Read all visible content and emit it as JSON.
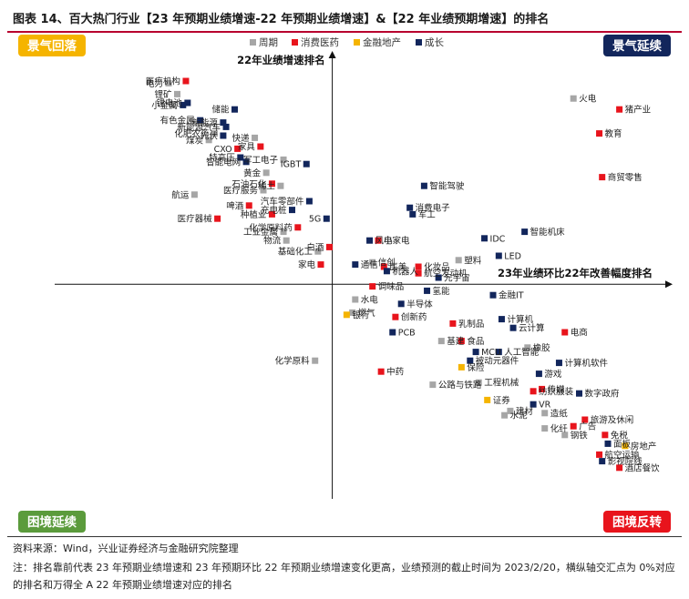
{
  "header": {
    "title": "图表 14、百大热门行业【23 年预期业绩增速-22 年预期业绩增速】&【22 年业绩预期增速】的排名"
  },
  "footer": {
    "source": "资料来源：Wind，兴业证券经济与金融研究院整理",
    "note": "注：排名靠前代表 23 年预期业绩增速和 23 年预期环比 22 年预期业绩增速变化更高，业绩预测的截止时间为 2023/2/20，横纵轴交汇点为 0%对应的排名和万得全 A 22 年预期业绩增速对应的排名"
  },
  "colors": {
    "周期": "#a6a6a6",
    "消费医药": "#e8141c",
    "金融地产": "#f5b400",
    "成长": "#12265c",
    "q_tl": "#f5b400",
    "q_tr": "#12265c",
    "q_bl": "#5b9b3c",
    "q_br": "#e8141c"
  },
  "chart_data": {
    "type": "scatter",
    "xlabel": "23年业绩环比22年改善幅度排名",
    "ylabel": "22年业绩增速排名",
    "xlim": [
      0,
      100
    ],
    "ylim": [
      0,
      100
    ],
    "origin": [
      42,
      48.5
    ],
    "note_axes": "both axes are ranks; higher value = better rank; axes cross at origin",
    "quadrants": {
      "top_left": "景气回落",
      "top_right": "景气延续",
      "bottom_left": "困境延续",
      "bottom_right": "困境反转"
    },
    "legend": [
      {
        "name": "周期",
        "color": "#a6a6a6"
      },
      {
        "name": "消费医药",
        "color": "#e8141c"
      },
      {
        "name": "金融地产",
        "color": "#f5b400"
      },
      {
        "name": "成长",
        "color": "#12265c"
      }
    ],
    "points": [
      {
        "label": "电力",
        "cat": "周期",
        "x": 13.5,
        "y": 94.5
      },
      {
        "label": "医疗机构",
        "cat": "消费医药",
        "x": 16.5,
        "y": 95
      },
      {
        "label": "锂矿",
        "cat": "周期",
        "x": 15,
        "y": 92
      },
      {
        "label": "锂电池",
        "cat": "成长",
        "x": 16.8,
        "y": 90
      },
      {
        "label": "小金属",
        "cat": "成长",
        "x": 16,
        "y": 89.5
      },
      {
        "label": "储能",
        "cat": "成长",
        "x": 25,
        "y": 88.5
      },
      {
        "label": "新能源",
        "cat": "成长",
        "x": 23,
        "y": 85.5
      },
      {
        "label": "新能源汽车",
        "cat": "成长",
        "x": 23.5,
        "y": 84.5
      },
      {
        "label": "有色金属",
        "cat": "成长",
        "x": 19,
        "y": 86
      },
      {
        "label": "化肥农药",
        "cat": "周期",
        "x": 21.5,
        "y": 83
      },
      {
        "label": "光伏",
        "cat": "成长",
        "x": 23,
        "y": 82.5
      },
      {
        "label": "快递",
        "cat": "周期",
        "x": 28.5,
        "y": 82
      },
      {
        "label": "煤炭",
        "cat": "周期",
        "x": 20.5,
        "y": 81.5
      },
      {
        "label": "CXO",
        "cat": "消费医药",
        "x": 25.5,
        "y": 79.5
      },
      {
        "label": "家具",
        "cat": "消费医药",
        "x": 29.5,
        "y": 80
      },
      {
        "label": "特高压",
        "cat": "成长",
        "x": 26,
        "y": 77.5
      },
      {
        "label": "军工电子",
        "cat": "周期",
        "x": 33.5,
        "y": 77
      },
      {
        "label": "IGBT",
        "cat": "成长",
        "x": 37.5,
        "y": 76
      },
      {
        "label": "智能电网",
        "cat": "成长",
        "x": 27,
        "y": 76.5
      },
      {
        "label": "黄金",
        "cat": "周期",
        "x": 30.5,
        "y": 74
      },
      {
        "label": "石油石化",
        "cat": "消费医药",
        "x": 31.5,
        "y": 71.5
      },
      {
        "label": "稀土",
        "cat": "周期",
        "x": 33,
        "y": 71
      },
      {
        "label": "医疗服务",
        "cat": "周期",
        "x": 30,
        "y": 70
      },
      {
        "label": "汽车零部件",
        "cat": "成长",
        "x": 38,
        "y": 67.5
      },
      {
        "label": "航运",
        "cat": "周期",
        "x": 18,
        "y": 69
      },
      {
        "label": "啤酒",
        "cat": "消费医药",
        "x": 27.5,
        "y": 66.5
      },
      {
        "label": "充电桩",
        "cat": "成长",
        "x": 35,
        "y": 65.5
      },
      {
        "label": "医疗器械",
        "cat": "消费医药",
        "x": 22,
        "y": 63.5
      },
      {
        "label": "种植业",
        "cat": "消费医药",
        "x": 31.5,
        "y": 64.5
      },
      {
        "label": "5G",
        "cat": "成长",
        "x": 41,
        "y": 63.5
      },
      {
        "label": "工业金属",
        "cat": "周期",
        "x": 33.5,
        "y": 60.5
      },
      {
        "label": "化学原料药",
        "cat": "消费医药",
        "x": 36,
        "y": 61.5
      },
      {
        "label": "物流",
        "cat": "周期",
        "x": 34,
        "y": 58.5
      },
      {
        "label": "白酒",
        "cat": "消费医药",
        "x": 41.5,
        "y": 57
      },
      {
        "label": "基础化工",
        "cat": "周期",
        "x": 39.5,
        "y": 56
      },
      {
        "label": "家电",
        "cat": "消费医药",
        "x": 40,
        "y": 53
      },
      {
        "label": "风电",
        "cat": "成长",
        "x": 48.5,
        "y": 58.5
      },
      {
        "label": "小家电",
        "cat": "消费医药",
        "x": 50,
        "y": 58.5
      },
      {
        "label": "信创",
        "cat": "周期",
        "x": 49,
        "y": 53.5
      },
      {
        "label": "通信",
        "cat": "成长",
        "x": 46,
        "y": 53
      },
      {
        "label": "医美",
        "cat": "消费医药",
        "x": 51,
        "y": 52.5
      },
      {
        "label": "化妆品",
        "cat": "消费医药",
        "x": 57,
        "y": 52.5
      },
      {
        "label": "机器人",
        "cat": "成长",
        "x": 51.5,
        "y": 51.5
      },
      {
        "label": "航空发动机",
        "cat": "消费医药",
        "x": 57,
        "y": 51
      },
      {
        "label": "塑料",
        "cat": "周期",
        "x": 64,
        "y": 54
      },
      {
        "label": "元宇宙",
        "cat": "成长",
        "x": 60.5,
        "y": 50
      },
      {
        "label": "智能驾驶",
        "cat": "成长",
        "x": 58,
        "y": 71
      },
      {
        "label": "消费电子",
        "cat": "成长",
        "x": 55.5,
        "y": 66
      },
      {
        "label": "军工",
        "cat": "成长",
        "x": 56,
        "y": 64.5
      },
      {
        "label": "IDC",
        "cat": "成长",
        "x": 68.5,
        "y": 59
      },
      {
        "label": "智能机床",
        "cat": "成长",
        "x": 75.5,
        "y": 60.5
      },
      {
        "label": "LED",
        "cat": "成长",
        "x": 71,
        "y": 55
      },
      {
        "label": "火电",
        "cat": "周期",
        "x": 84,
        "y": 91
      },
      {
        "label": "猪产业",
        "cat": "消费医药",
        "x": 92,
        "y": 88.5
      },
      {
        "label": "教育",
        "cat": "消费医药",
        "x": 88.5,
        "y": 83
      },
      {
        "label": "商贸零售",
        "cat": "消费医药",
        "x": 89,
        "y": 73
      },
      {
        "label": "调味品",
        "cat": "消费医药",
        "x": 49,
        "y": 48
      },
      {
        "label": "氢能",
        "cat": "成长",
        "x": 58.5,
        "y": 47
      },
      {
        "label": "金融IT",
        "cat": "成长",
        "x": 70,
        "y": 46
      },
      {
        "label": "水电",
        "cat": "周期",
        "x": 46,
        "y": 45
      },
      {
        "label": "半导体",
        "cat": "成长",
        "x": 54,
        "y": 44
      },
      {
        "label": "燃气",
        "cat": "周期",
        "x": 45.5,
        "y": 42
      },
      {
        "label": "银行",
        "cat": "金融地产",
        "x": 44.5,
        "y": 41.5
      },
      {
        "label": "创新药",
        "cat": "消费医药",
        "x": 53,
        "y": 41
      },
      {
        "label": "乳制品",
        "cat": "消费医药",
        "x": 63,
        "y": 39.5
      },
      {
        "label": "PCB",
        "cat": "成长",
        "x": 52.5,
        "y": 37.5
      },
      {
        "label": "计算机",
        "cat": "成长",
        "x": 71.5,
        "y": 40.5
      },
      {
        "label": "云计算",
        "cat": "成长",
        "x": 73.5,
        "y": 38.5
      },
      {
        "label": "电商",
        "cat": "消费医药",
        "x": 82.5,
        "y": 37.5
      },
      {
        "label": "基建",
        "cat": "周期",
        "x": 61,
        "y": 35.5
      },
      {
        "label": "食品",
        "cat": "消费医药",
        "x": 64.5,
        "y": 35.5
      },
      {
        "label": "MCU",
        "cat": "成长",
        "x": 67,
        "y": 33
      },
      {
        "label": "被动元器件",
        "cat": "成长",
        "x": 66,
        "y": 31
      },
      {
        "label": "人工智能",
        "cat": "成长",
        "x": 71,
        "y": 33
      },
      {
        "label": "橡胶",
        "cat": "周期",
        "x": 76,
        "y": 34
      },
      {
        "label": "化学原料",
        "cat": "周期",
        "x": 39,
        "y": 31
      },
      {
        "label": "保险",
        "cat": "金融地产",
        "x": 64.5,
        "y": 29.5
      },
      {
        "label": "计算机软件",
        "cat": "成长",
        "x": 81.5,
        "y": 30.5
      },
      {
        "label": "中药",
        "cat": "消费医药",
        "x": 50.5,
        "y": 28.5
      },
      {
        "label": "游戏",
        "cat": "成长",
        "x": 78,
        "y": 28
      },
      {
        "label": "公路与铁路",
        "cat": "周期",
        "x": 59.5,
        "y": 25.5
      },
      {
        "label": "工程机械",
        "cat": "周期",
        "x": 67.5,
        "y": 26
      },
      {
        "label": "纺织服装",
        "cat": "消费医药",
        "x": 77,
        "y": 24
      },
      {
        "label": "传媒",
        "cat": "消费医药",
        "x": 78.5,
        "y": 24.5
      },
      {
        "label": "数字政府",
        "cat": "成长",
        "x": 85,
        "y": 23.5
      },
      {
        "label": "证券",
        "cat": "金融地产",
        "x": 69,
        "y": 22
      },
      {
        "label": "VR",
        "cat": "成长",
        "x": 77,
        "y": 21
      },
      {
        "label": "造纸",
        "cat": "周期",
        "x": 79,
        "y": 19
      },
      {
        "label": "建材",
        "cat": "周期",
        "x": 73,
        "y": 19.5
      },
      {
        "label": "水泥",
        "cat": "周期",
        "x": 72,
        "y": 18.5
      },
      {
        "label": "旅游及休闲",
        "cat": "消费医药",
        "x": 86,
        "y": 17.5
      },
      {
        "label": "广告",
        "cat": "消费医药",
        "x": 84,
        "y": 16
      },
      {
        "label": "化纤",
        "cat": "周期",
        "x": 79,
        "y": 15.5
      },
      {
        "label": "免税",
        "cat": "消费医药",
        "x": 89.5,
        "y": 14
      },
      {
        "label": "钢铁",
        "cat": "周期",
        "x": 82.5,
        "y": 14
      },
      {
        "label": "面板",
        "cat": "成长",
        "x": 90,
        "y": 12
      },
      {
        "label": "房地产",
        "cat": "金融地产",
        "x": 93,
        "y": 11.5
      },
      {
        "label": "航空运输",
        "cat": "消费医药",
        "x": 88.5,
        "y": 9.5
      },
      {
        "label": "影视院线",
        "cat": "成长",
        "x": 89,
        "y": 8
      },
      {
        "label": "酒店餐饮",
        "cat": "消费医药",
        "x": 92,
        "y": 6.5
      }
    ]
  }
}
